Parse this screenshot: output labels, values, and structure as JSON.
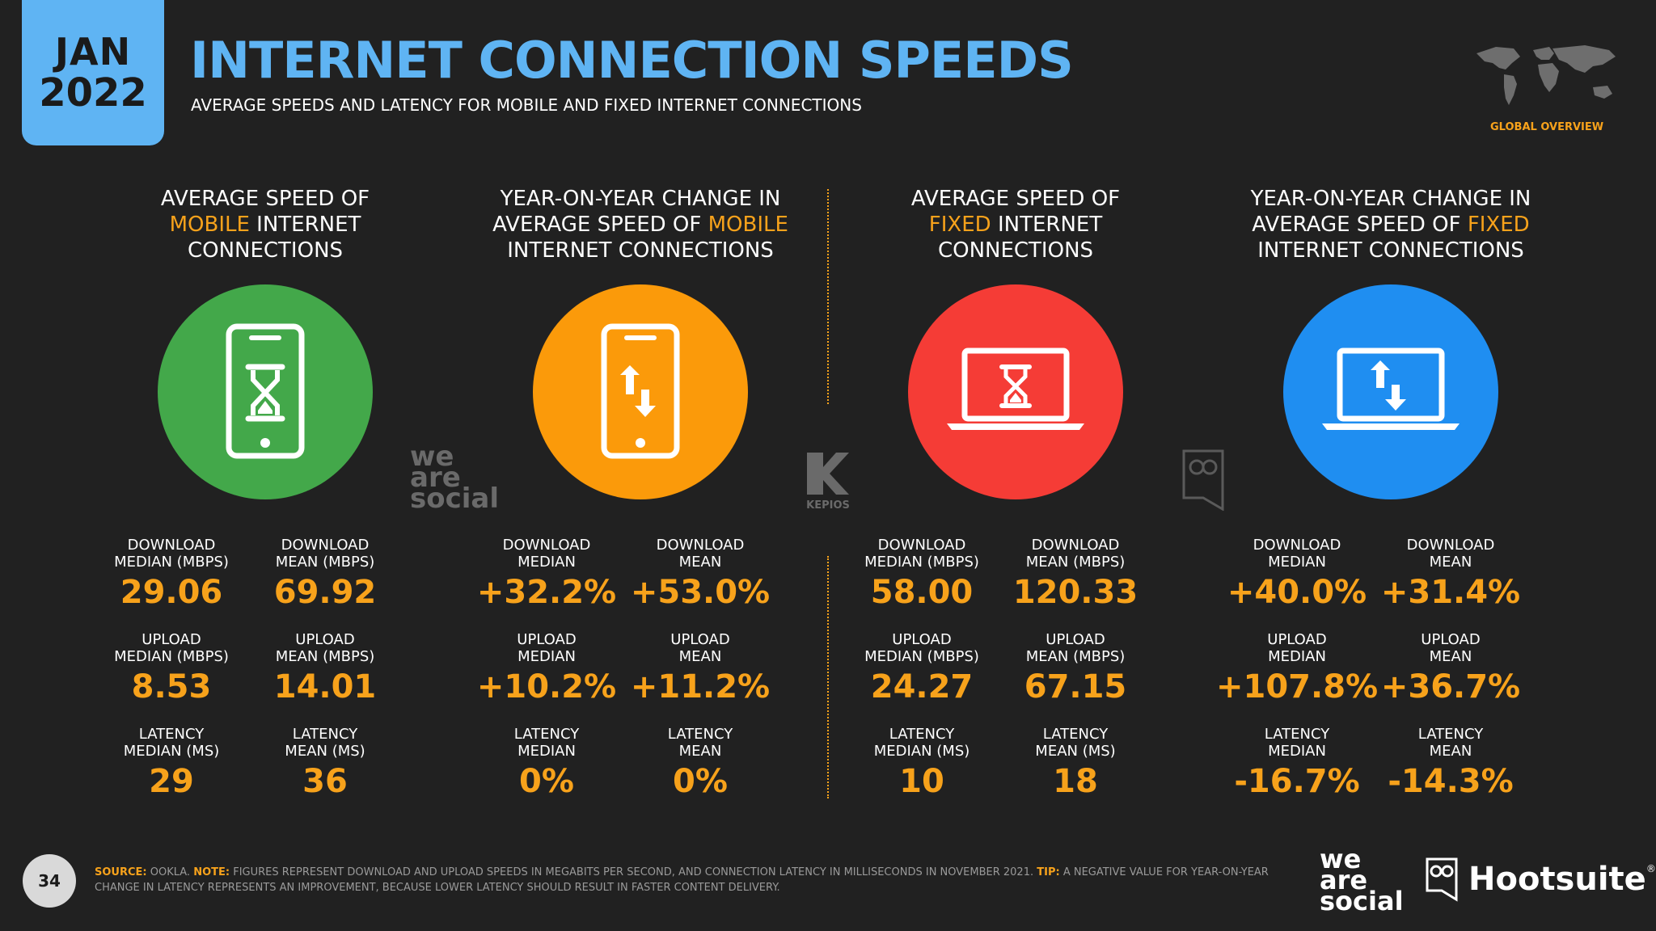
{
  "header": {
    "month": "JAN",
    "year": "2022",
    "title": "INTERNET CONNECTION SPEEDS",
    "subtitle": "AVERAGE SPEEDS AND LATENCY FOR MOBILE AND FIXED INTERNET CONNECTIONS",
    "tag": "GLOBAL OVERVIEW"
  },
  "columns": [
    {
      "head_pre": "AVERAGE SPEED OF",
      "head_hl": "MOBILE",
      "head_post": " INTERNET",
      "head_last": "CONNECTIONS",
      "icon": "mobile-speed-icon",
      "color": "#43a84a",
      "metrics": [
        {
          "l1": "DOWNLOAD",
          "l2": "MEDIAN (MBPS)",
          "v": "29.06"
        },
        {
          "l1": "DOWNLOAD",
          "l2": "MEAN (MBPS)",
          "v": "69.92"
        },
        {
          "l1": "UPLOAD",
          "l2": "MEDIAN (MBPS)",
          "v": "8.53"
        },
        {
          "l1": "UPLOAD",
          "l2": "MEAN (MBPS)",
          "v": "14.01"
        },
        {
          "l1": "LATENCY",
          "l2": "MEDIAN (MS)",
          "v": "29"
        },
        {
          "l1": "LATENCY",
          "l2": "MEAN (MS)",
          "v": "36"
        }
      ]
    },
    {
      "head_pre": "YEAR-ON-YEAR CHANGE IN",
      "head_hl": "MOBILE",
      "head_mid": "AVERAGE SPEED OF ",
      "head_last": "INTERNET CONNECTIONS",
      "icon": "mobile-change-icon",
      "color": "#fb9a0a",
      "metrics": [
        {
          "l1": "DOWNLOAD",
          "l2": "MEDIAN",
          "v": "+32.2%"
        },
        {
          "l1": "DOWNLOAD",
          "l2": "MEAN",
          "v": "+53.0%"
        },
        {
          "l1": "UPLOAD",
          "l2": "MEDIAN",
          "v": "+10.2%"
        },
        {
          "l1": "UPLOAD",
          "l2": "MEAN",
          "v": "+11.2%"
        },
        {
          "l1": "LATENCY",
          "l2": "MEDIAN",
          "v": "0%"
        },
        {
          "l1": "LATENCY",
          "l2": "MEAN",
          "v": "0%"
        }
      ]
    },
    {
      "head_pre": "AVERAGE SPEED OF",
      "head_hl": "FIXED",
      "head_post": " INTERNET",
      "head_last": "CONNECTIONS",
      "icon": "fixed-speed-icon",
      "color": "#f53c36",
      "metrics": [
        {
          "l1": "DOWNLOAD",
          "l2": "MEDIAN (MBPS)",
          "v": "58.00"
        },
        {
          "l1": "DOWNLOAD",
          "l2": "MEAN (MBPS)",
          "v": "120.33"
        },
        {
          "l1": "UPLOAD",
          "l2": "MEDIAN (MBPS)",
          "v": "24.27"
        },
        {
          "l1": "UPLOAD",
          "l2": "MEAN (MBPS)",
          "v": "67.15"
        },
        {
          "l1": "LATENCY",
          "l2": "MEDIAN (MS)",
          "v": "10"
        },
        {
          "l1": "LATENCY",
          "l2": "MEAN (MS)",
          "v": "18"
        }
      ]
    },
    {
      "head_pre": "YEAR-ON-YEAR CHANGE IN",
      "head_hl": "FIXED",
      "head_mid": "AVERAGE SPEED OF ",
      "head_last": "INTERNET CONNECTIONS",
      "icon": "fixed-change-icon",
      "color": "#1f8ef1",
      "metrics": [
        {
          "l1": "DOWNLOAD",
          "l2": "MEDIAN",
          "v": "+40.0%"
        },
        {
          "l1": "DOWNLOAD",
          "l2": "MEAN",
          "v": "+31.4%"
        },
        {
          "l1": "UPLOAD",
          "l2": "MEDIAN",
          "v": "+107.8%"
        },
        {
          "l1": "UPLOAD",
          "l2": "MEAN",
          "v": "+36.7%"
        },
        {
          "l1": "LATENCY",
          "l2": "MEDIAN",
          "v": "-16.7%"
        },
        {
          "l1": "LATENCY",
          "l2": "MEAN",
          "v": "-14.3%"
        }
      ]
    }
  ],
  "watermarks": {
    "was": [
      "we",
      "are",
      "social"
    ],
    "kepios": "KEPIOS"
  },
  "footer": {
    "page": "34",
    "source_k": "SOURCE:",
    "source_v": " OOKLA. ",
    "note_k": "NOTE:",
    "note_v": " FIGURES REPRESENT DOWNLOAD AND UPLOAD SPEEDS IN MEGABITS PER SECOND, AND CONNECTION LATENCY IN MILLISECONDS IN NOVEMBER 2021. ",
    "tip_k": "TIP:",
    "tip_v": " A NEGATIVE VALUE FOR YEAR-ON-YEAR CHANGE IN LATENCY REPRESENTS AN IMPROVEMENT, BECAUSE LOWER LATENCY SHOULD RESULT IN FASTER CONTENT DELIVERY.",
    "logo_was": [
      "we",
      "are",
      "social"
    ],
    "logo_hootsuite": "Hootsuite",
    "logo_tm": "®"
  }
}
